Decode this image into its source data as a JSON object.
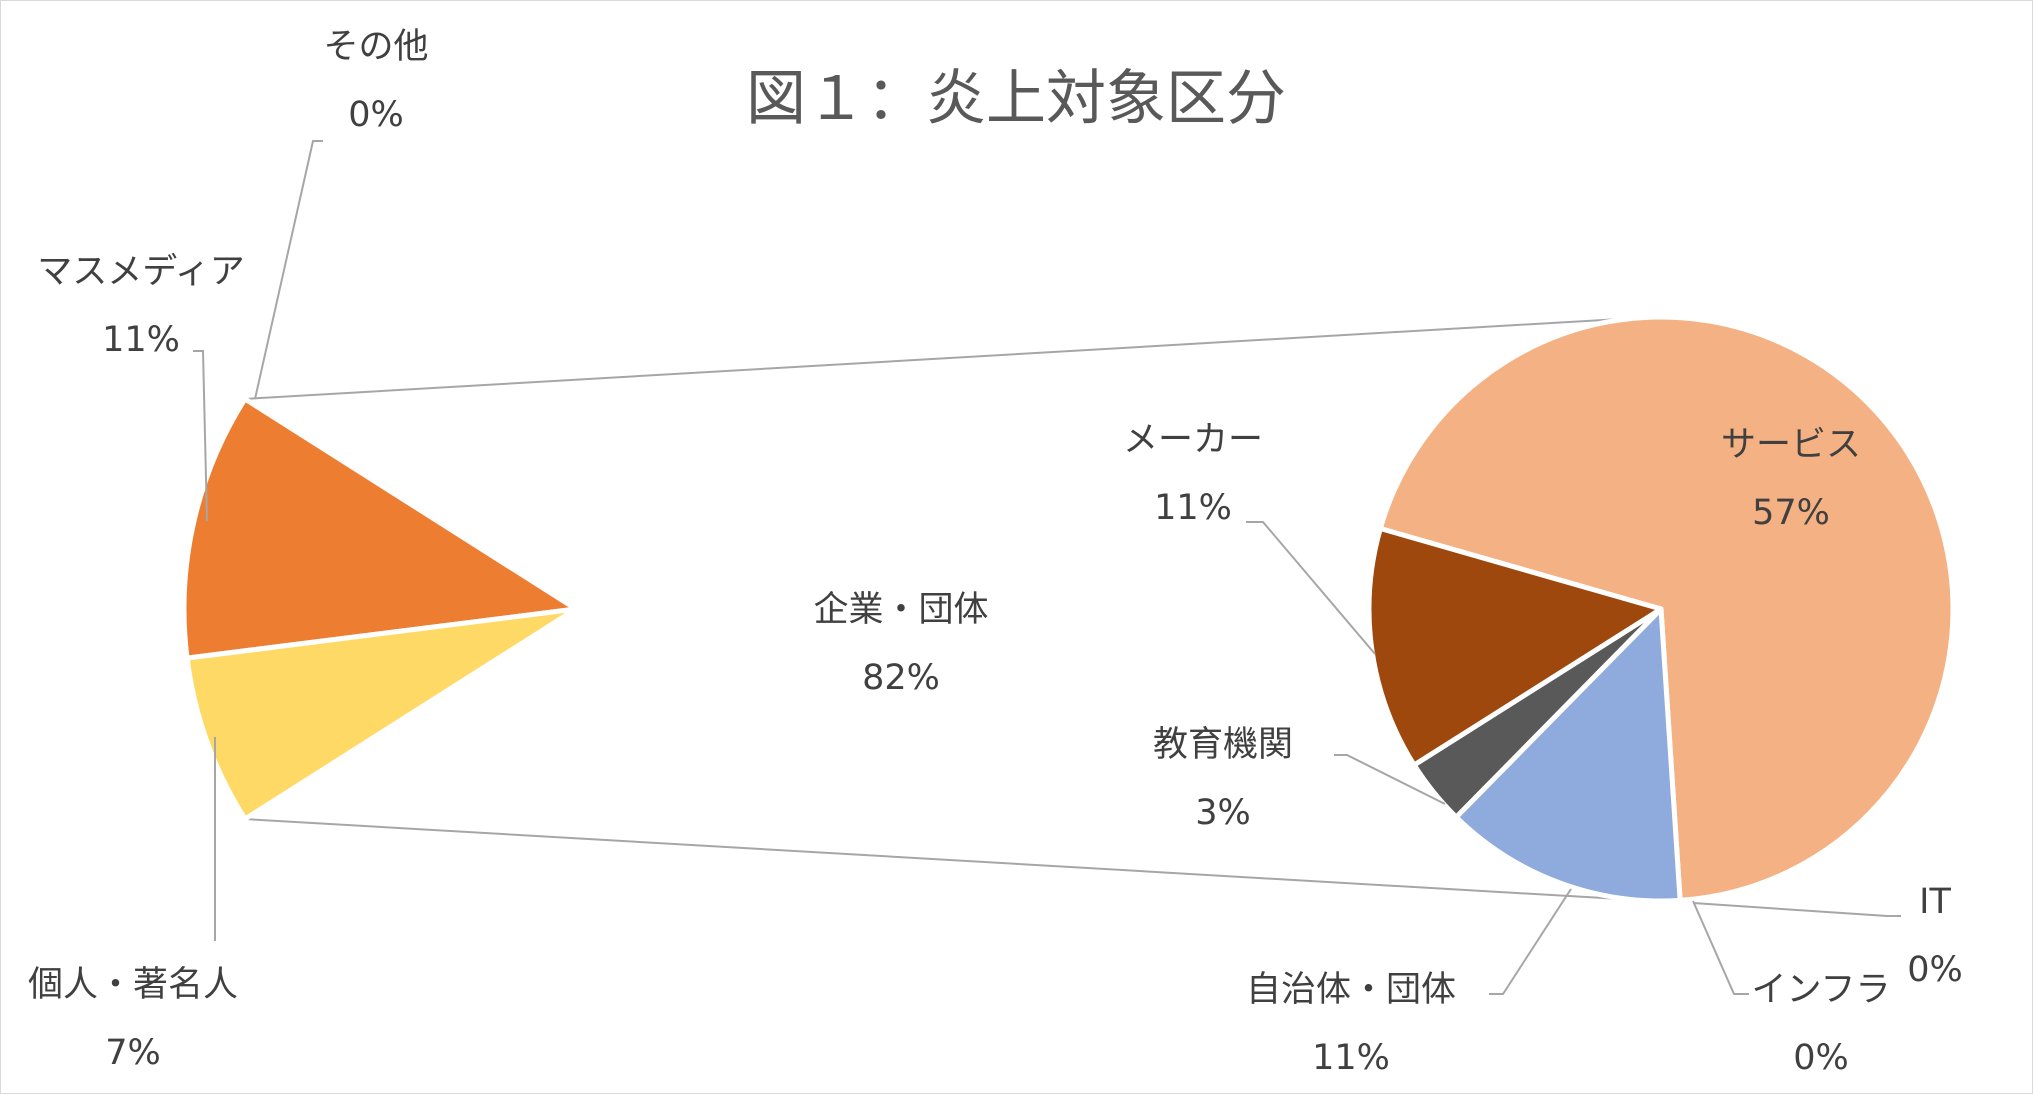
{
  "chart_data": {
    "type": "pie",
    "title": "図１：炎上対象区分",
    "primary": {
      "slices": [
        {
          "label": "企業・団体",
          "percent_label": "82%",
          "value": 82,
          "color": "#9DC3E6"
        },
        {
          "label": "マスメディア",
          "percent_label": "11%",
          "value": 11,
          "color": "#ED7D31"
        },
        {
          "label": "個人・著名人",
          "percent_label": "7%",
          "value": 7,
          "color": "#FFD966"
        },
        {
          "label": "その他",
          "percent_label": "0%",
          "value": 0,
          "color": "#A5A5A5"
        }
      ]
    },
    "secondary": {
      "expands": "企業・団体",
      "slices": [
        {
          "label": "サービス",
          "percent_label": "57%",
          "value": 57,
          "color": "#F4B183"
        },
        {
          "label": "メーカー",
          "percent_label": "11%",
          "value": 11,
          "color": "#8FAADC"
        },
        {
          "label": "教育機関",
          "percent_label": "3%",
          "value": 3,
          "color": "#595959"
        },
        {
          "label": "自治体・団体",
          "percent_label": "11%",
          "value": 11,
          "color": "#9E480E"
        },
        {
          "label": "インフラ",
          "percent_label": "0%",
          "value": 0,
          "color": "#264478"
        },
        {
          "label": "IT",
          "percent_label": "0%",
          "value": 0,
          "color": "#43682B"
        }
      ]
    }
  }
}
